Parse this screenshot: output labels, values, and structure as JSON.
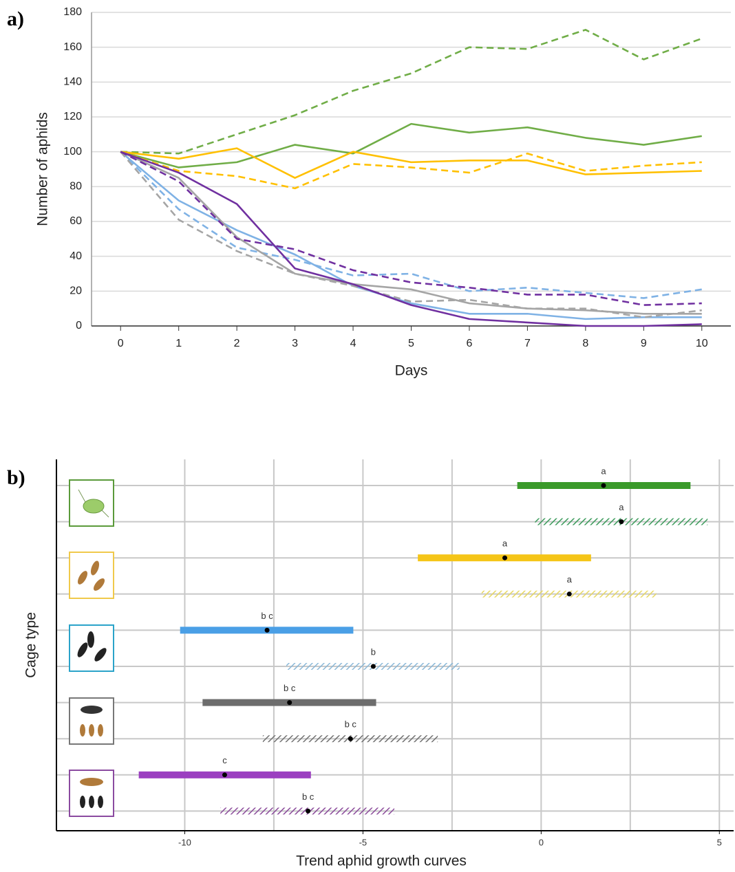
{
  "chart_data": [
    {
      "type": "line",
      "panel_label": "a)",
      "x_label": "Days",
      "y_label": "Number of aphids",
      "x": [
        0,
        1,
        2,
        3,
        4,
        5,
        6,
        7,
        8,
        9,
        10
      ],
      "xlim": [
        -0.5,
        10.5
      ],
      "xticks": [
        0,
        1,
        2,
        3,
        4,
        5,
        6,
        7,
        8,
        9,
        10
      ],
      "ylim": [
        0,
        180
      ],
      "yticks": [
        0,
        20,
        40,
        60,
        80,
        100,
        120,
        140,
        160,
        180
      ],
      "grid": true,
      "series": [
        {
          "color": "#70ad47",
          "dashed": true,
          "values": [
            100,
            99,
            110,
            121,
            135,
            145,
            160,
            159,
            170,
            153,
            165
          ]
        },
        {
          "color": "#70ad47",
          "dashed": false,
          "values": [
            100,
            91,
            94,
            104,
            99,
            116,
            111,
            114,
            108,
            104,
            109
          ]
        },
        {
          "color": "#ffc000",
          "dashed": false,
          "values": [
            100,
            96,
            102,
            85,
            100,
            94,
            95,
            95,
            87,
            88,
            89
          ]
        },
        {
          "color": "#ffc000",
          "dashed": true,
          "values": [
            100,
            89,
            86,
            79,
            93,
            91,
            88,
            99,
            89,
            92,
            94
          ]
        },
        {
          "color": "#7fb2e5",
          "dashed": false,
          "values": [
            100,
            72,
            55,
            41,
            23,
            13,
            7,
            7,
            4,
            5,
            5
          ]
        },
        {
          "color": "#7fb2e5",
          "dashed": true,
          "values": [
            100,
            67,
            45,
            38,
            29,
            30,
            20,
            22,
            19,
            16,
            21
          ]
        },
        {
          "color": "#a5a5a5",
          "dashed": false,
          "values": [
            100,
            85,
            51,
            30,
            24,
            21,
            13,
            10,
            9,
            7,
            7
          ]
        },
        {
          "color": "#a5a5a5",
          "dashed": true,
          "values": [
            100,
            61,
            43,
            30,
            23,
            14,
            15,
            10,
            10,
            5,
            9
          ]
        },
        {
          "color": "#7030a0",
          "dashed": false,
          "values": [
            100,
            88,
            70,
            33,
            24,
            12,
            4,
            2,
            0,
            0,
            1
          ]
        },
        {
          "color": "#7030a0",
          "dashed": true,
          "values": [
            100,
            83,
            50,
            44,
            32,
            25,
            22,
            18,
            18,
            12,
            13
          ]
        }
      ]
    },
    {
      "type": "interval",
      "panel_label": "b)",
      "x_label": "Trend aphid growth curves",
      "y_label": "Cage type",
      "xlim": [
        -13.6,
        5.4
      ],
      "xticks": [
        -10,
        -5,
        0,
        5
      ],
      "minor_grid": [
        -7.5,
        -2.5,
        2.5
      ],
      "grid": true,
      "intervals": [
        {
          "color": "#3a9a2a",
          "hatched": false,
          "low": -0.67,
          "estimate": 1.75,
          "high": 4.19,
          "label": "a"
        },
        {
          "color": "#3a9a5a",
          "hatched": true,
          "low": -0.17,
          "estimate": 2.25,
          "high": 4.67,
          "label": "a"
        },
        {
          "color": "#f5c518",
          "hatched": false,
          "low": -3.46,
          "estimate": -1.02,
          "high": 1.4,
          "label": "a"
        },
        {
          "color": "#e8d860",
          "hatched": true,
          "low": -1.67,
          "estimate": 0.79,
          "high": 3.23,
          "label": "a"
        },
        {
          "color": "#4a9fe6",
          "hatched": false,
          "low": -10.13,
          "estimate": -7.69,
          "high": -5.27,
          "label": "b c"
        },
        {
          "color": "#8ab8d8",
          "hatched": true,
          "low": -7.15,
          "estimate": -4.71,
          "high": -2.29,
          "label": "b"
        },
        {
          "color": "#6d6d6d",
          "hatched": false,
          "low": -9.5,
          "estimate": -7.06,
          "high": -4.63,
          "label": "b c"
        },
        {
          "color": "#707070",
          "hatched": true,
          "low": -7.81,
          "estimate": -5.35,
          "high": -2.9,
          "label": "b c"
        },
        {
          "color": "#9b3fc0",
          "hatched": false,
          "low": -11.29,
          "estimate": -8.88,
          "high": -6.46,
          "label": "c"
        },
        {
          "color": "#8a4a9a",
          "hatched": true,
          "low": -9.0,
          "estimate": -6.54,
          "high": -4.12,
          "label": "b c"
        }
      ]
    }
  ]
}
